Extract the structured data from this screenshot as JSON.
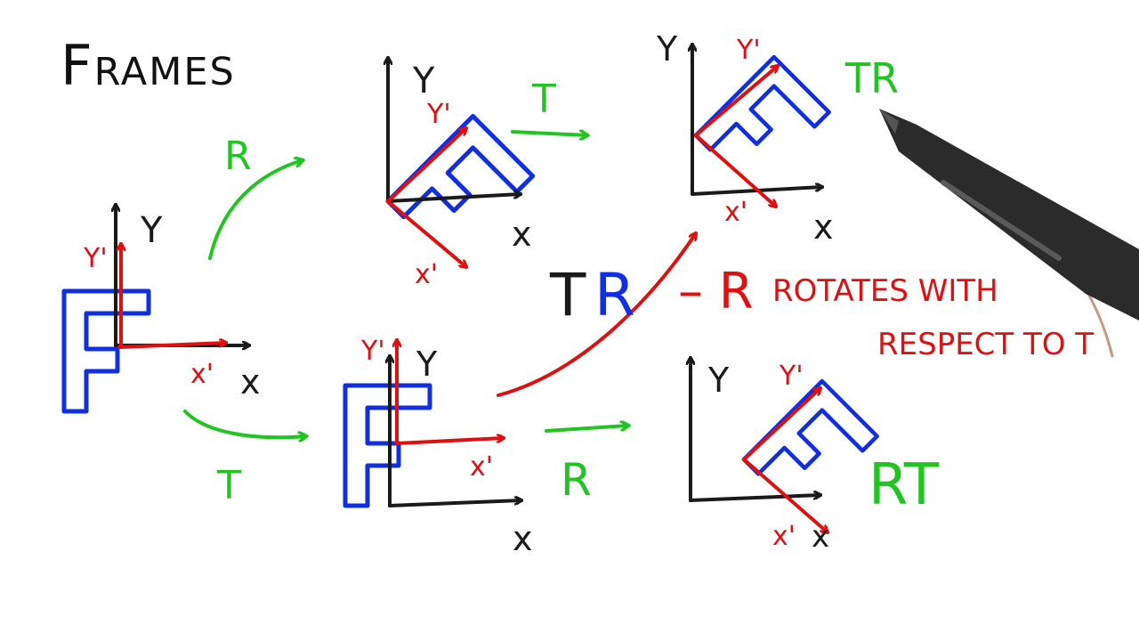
{
  "title": "Frames",
  "labels": {
    "axis_y": "Y",
    "axis_x": "x",
    "frame_y": "Y'",
    "frame_x": "x'",
    "op_r": "R",
    "op_t": "T",
    "result_tr": "TR",
    "result_rt": "RT",
    "big_t": "T",
    "big_r": "R"
  },
  "note": {
    "dash_r": "– R",
    "line1": "ROTATES WITH",
    "line2": "RESPECT TO T"
  },
  "colors": {
    "axes": "#1a1a1a",
    "frame": "#e01010",
    "shape": "#1030e0",
    "operation": "#22c422"
  }
}
